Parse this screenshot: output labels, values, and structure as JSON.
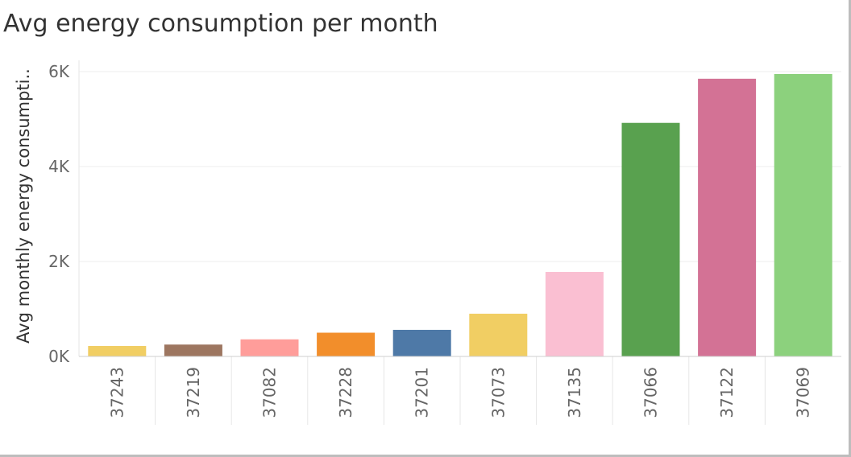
{
  "chart_data": {
    "type": "bar",
    "title": "Avg energy consumption per month",
    "ylabel": "Avg monthly energy consumpti..",
    "xlabel": "",
    "categories": [
      "37243",
      "37219",
      "37082",
      "37228",
      "37201",
      "37073",
      "37135",
      "37066",
      "37122",
      "37069"
    ],
    "values": [
      220,
      250,
      360,
      500,
      560,
      900,
      1780,
      4920,
      5850,
      5950
    ],
    "colors": [
      "#F1CE63",
      "#9D7660",
      "#FF9D9A",
      "#F28E2B",
      "#4E79A7",
      "#F1CE63",
      "#FABFD2",
      "#59A14F",
      "#D37295",
      "#8CD17D"
    ],
    "ylim": [
      0,
      6000
    ],
    "yticks": [
      0,
      2000,
      4000,
      6000
    ],
    "ytick_labels": [
      "0K",
      "2K",
      "4K",
      "6K"
    ],
    "grid": true,
    "legend": "none"
  }
}
